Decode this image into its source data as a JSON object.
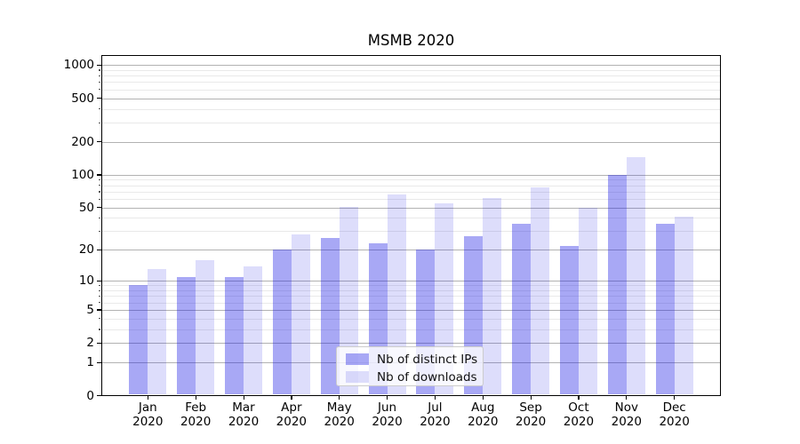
{
  "title": "MSMB 2020",
  "chart_data": {
    "type": "bar",
    "title": "MSMB 2020",
    "categories": [
      "Jan",
      "Feb",
      "Mar",
      "Apr",
      "May",
      "Jun",
      "Jul",
      "Aug",
      "Sep",
      "Oct",
      "Nov",
      "Dec"
    ],
    "category_year": "2020",
    "series": [
      {
        "name": "Nb of distinct IPs",
        "color": "rgba(25,25,230,0.38)",
        "values": [
          9,
          11,
          11,
          20,
          26,
          23,
          20,
          27,
          35,
          22,
          100,
          35
        ]
      },
      {
        "name": "Nb of downloads",
        "color": "rgba(25,25,230,0.15)",
        "values": [
          13,
          16,
          14,
          28,
          51,
          66,
          55,
          61,
          76,
          50,
          146,
          41
        ]
      }
    ],
    "xlabel": "",
    "ylabel": "",
    "y_scale": "log1p",
    "y_major_ticks": [
      0,
      1,
      2,
      5,
      10,
      20,
      50,
      100,
      200,
      500,
      1000
    ],
    "y_minor_ticks": [
      3,
      4,
      6,
      7,
      8,
      9,
      30,
      40,
      60,
      70,
      80,
      90,
      300,
      400,
      600,
      700,
      800,
      900
    ],
    "ylim": [
      0,
      1230
    ],
    "grid": true,
    "legend_position": "lower center",
    "colors": {
      "grid_major": "#b2b2b2",
      "grid_minor": "#e9e9e9",
      "spine": "#000000"
    }
  }
}
